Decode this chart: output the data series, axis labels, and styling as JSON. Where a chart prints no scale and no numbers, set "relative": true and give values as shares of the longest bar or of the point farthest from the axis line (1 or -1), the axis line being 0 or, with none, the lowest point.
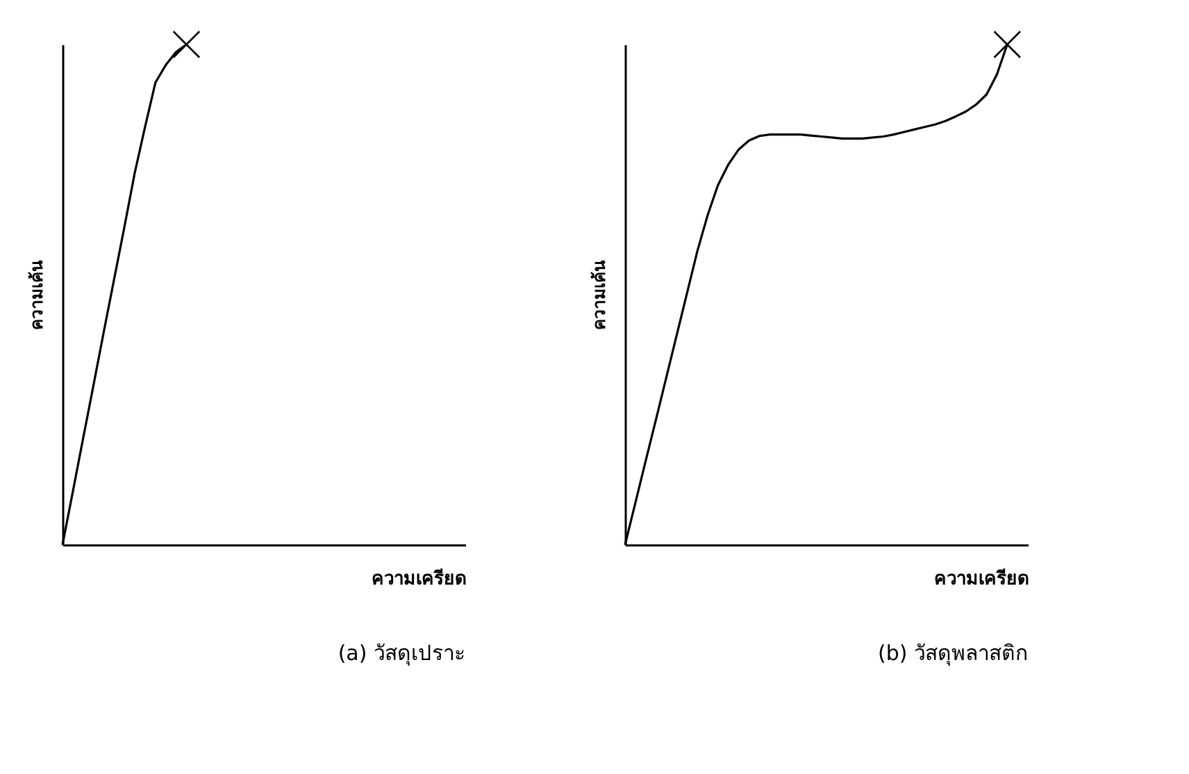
{
  "chart_data": [
    {
      "type": "line",
      "title": "(a) วัสดุเปราะ",
      "xlabel": "ความเครียด",
      "ylabel": "ความเค้น",
      "relative": true,
      "categories": [
        null,
        null,
        null,
        null,
        null,
        null,
        null,
        null,
        null,
        null,
        null,
        null,
        null,
        null,
        null,
        null,
        null,
        null,
        null,
        null,
        null,
        null,
        null,
        null,
        null,
        null,
        null,
        null,
        null,
        null,
        null,
        null,
        null,
        null,
        null,
        null,
        null,
        null,
        null,
        null
      ],
      "series": [
        {
          "line_style": "solid",
          "color": "#000000",
          "values": [
            0,
            0.106,
            0.213,
            0.319,
            0.426,
            0.531,
            0.636,
            0.744,
            0.836,
            0.924,
            0.959,
            0.985,
            1.0,
            null,
            null,
            null,
            null,
            null,
            null,
            null,
            null,
            null,
            null,
            null,
            null,
            null,
            null,
            null,
            null,
            null,
            null,
            null,
            null,
            null,
            null,
            null,
            null,
            null,
            null,
            null
          ]
        }
      ]
    },
    {
      "type": "line",
      "title": "(b) วัสดุพลาสติก",
      "xlabel": "ความเครียด",
      "ylabel": "ความเค้น",
      "relative": true,
      "categories": [
        null,
        null,
        null,
        null,
        null,
        null,
        null,
        null,
        null,
        null,
        null,
        null,
        null,
        null,
        null,
        null,
        null,
        null,
        null,
        null,
        null,
        null,
        null,
        null,
        null,
        null,
        null,
        null,
        null,
        null,
        null,
        null,
        null,
        null,
        null,
        null,
        null,
        null,
        null,
        null
      ],
      "series": [
        {
          "line_style": "solid",
          "color": "#000000",
          "values": [
            0,
            0.084,
            0.168,
            0.251,
            0.335,
            0.419,
            0.503,
            0.587,
            0.659,
            0.719,
            0.76,
            0.79,
            0.808,
            0.817,
            0.82,
            0.82,
            0.82,
            0.82,
            0.818,
            0.816,
            0.814,
            0.812,
            0.812,
            0.812,
            0.814,
            0.816,
            0.82,
            0.825,
            0.83,
            0.835,
            0.84,
            0.847,
            0.856,
            0.866,
            0.88,
            0.9,
            0.94,
            1.0,
            null,
            null
          ]
        }
      ]
    }
  ]
}
